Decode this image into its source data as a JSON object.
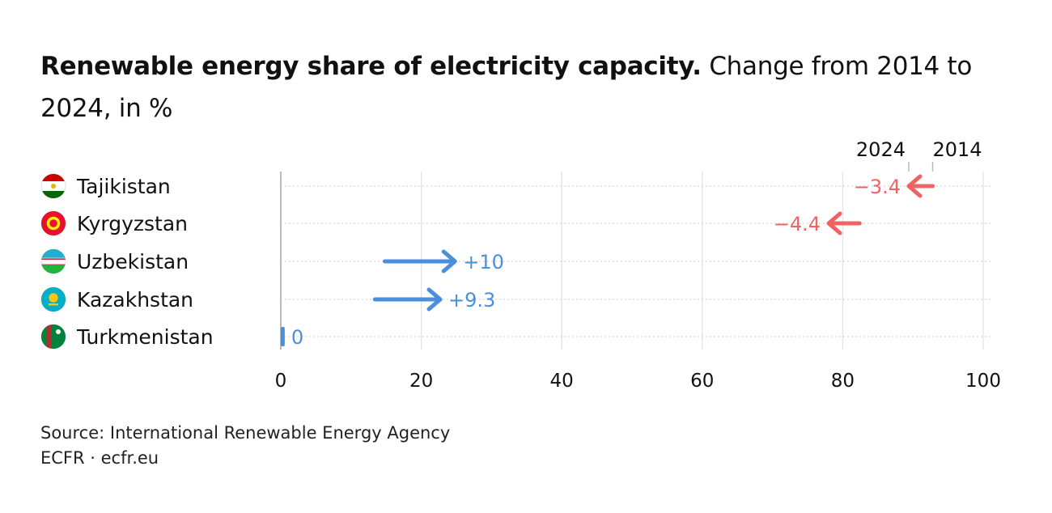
{
  "title_bold": "Renewable energy share of electricity capacity.",
  "title_rest": " Change from 2014 to 2024, in %",
  "source": "Source: International Renewable Energy Agency",
  "credit": "ECFR · ecfr.eu",
  "colors": {
    "increase": "#4a8fdc",
    "decrease": "#ee6464",
    "grid": "#e3e3e3",
    "axis": "#bbbbbb"
  },
  "chart_data": {
    "type": "arrow",
    "xlim": [
      0,
      100
    ],
    "x_ticks": [
      "0",
      "20",
      "40",
      "60",
      "80",
      "100"
    ],
    "legend_labels": {
      "end": "2024",
      "start": "2014"
    },
    "rows": [
      {
        "name": "Tajikistan",
        "flag": "tajikistan-flag-icon",
        "start": 92.8,
        "end": 89.4,
        "label": "−3.4",
        "dir": "down"
      },
      {
        "name": "Kyrgyzstan",
        "flag": "kyrgyzstan-flag-icon",
        "start": 82.4,
        "end": 78.0,
        "label": "−4.4",
        "dir": "down"
      },
      {
        "name": "Uzbekistan",
        "flag": "uzbekistan-flag-icon",
        "start": 14.8,
        "end": 24.8,
        "label": "+10",
        "dir": "up"
      },
      {
        "name": "Kazakhstan",
        "flag": "kazakhstan-flag-icon",
        "start": 13.4,
        "end": 22.7,
        "label": "+9.3",
        "dir": "up"
      },
      {
        "name": "Turkmenistan",
        "flag": "turkmenistan-flag-icon",
        "start": 0.1,
        "end": 0.1,
        "label": "0",
        "dir": "flat"
      }
    ]
  }
}
